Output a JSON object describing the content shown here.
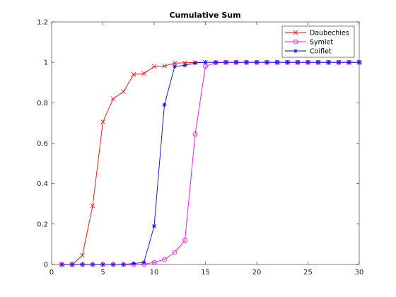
{
  "chart_data": {
    "type": "line",
    "title": "Cumulative Sum",
    "xlabel": "",
    "ylabel": "",
    "xlim": [
      0,
      30
    ],
    "ylim": [
      0,
      1.2
    ],
    "xticks": [
      0,
      5,
      10,
      15,
      20,
      25,
      30
    ],
    "yticks": [
      0,
      0.2,
      0.4,
      0.6,
      0.8,
      1,
      1.2
    ],
    "grid": false,
    "legend_position": "top-right",
    "x": [
      1,
      2,
      3,
      4,
      5,
      6,
      7,
      8,
      9,
      10,
      11,
      12,
      13,
      14,
      15,
      16,
      17,
      18,
      19,
      20,
      21,
      22,
      23,
      24,
      25,
      26,
      27,
      28,
      29,
      30
    ],
    "series": [
      {
        "name": "Daubechies",
        "color": "#ff0000",
        "marker": "x",
        "values": [
          0.0,
          0.0,
          0.045,
          0.29,
          0.705,
          0.82,
          0.855,
          0.94,
          0.945,
          0.98,
          0.982,
          0.996,
          0.998,
          0.999,
          1,
          1,
          1,
          1,
          1,
          1,
          1,
          1,
          1,
          1,
          1,
          1,
          1,
          1,
          1,
          1
        ]
      },
      {
        "name": "Symlet",
        "color": "#ff00ff",
        "marker": "o",
        "values": [
          0,
          0,
          0,
          0,
          0,
          0,
          0,
          0,
          0.002,
          0.01,
          0.025,
          0.06,
          0.12,
          0.645,
          0.98,
          0.998,
          1,
          1,
          1,
          1,
          1,
          1,
          1,
          1,
          1,
          1,
          1,
          1,
          1,
          1
        ]
      },
      {
        "name": "Coiflet",
        "color": "#0000ff",
        "marker": "*",
        "values": [
          0,
          0,
          0,
          0,
          0,
          0,
          0,
          0.005,
          0.01,
          0.19,
          0.79,
          0.98,
          0.985,
          0.997,
          1,
          1,
          1,
          1,
          1,
          1,
          1,
          1,
          1,
          1,
          1,
          1,
          1,
          1,
          1,
          1
        ]
      }
    ]
  }
}
